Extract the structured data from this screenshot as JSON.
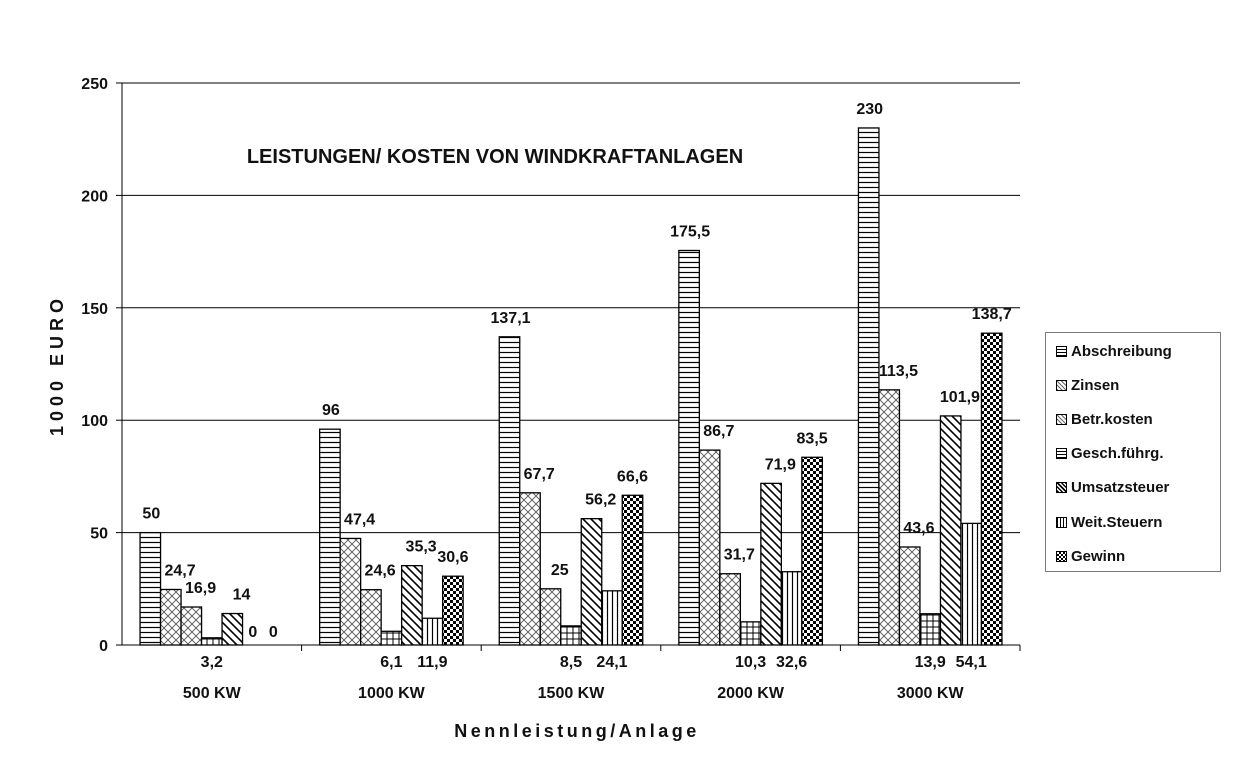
{
  "chart_data": {
    "type": "bar",
    "title": "LEISTUNGEN/ KOSTEN VON WINDKRAFTANLAGEN",
    "xlabel": "Nennleistung/Anlage",
    "ylabel": "1000 EURO",
    "ylim": [
      0,
      250
    ],
    "yticks": [
      "0",
      "50",
      "100",
      "150",
      "200",
      "250"
    ],
    "grid": true,
    "legend_position": "right",
    "categories": [
      "500 KW",
      "1000 KW",
      "1500 KW",
      "2000 KW",
      "3000 KW"
    ],
    "series": [
      {
        "name": "Abschreibung",
        "pattern": "hlines",
        "values": [
          50,
          96,
          137.1,
          175.5,
          230
        ],
        "labels": [
          "50",
          "96",
          "137,1",
          "175,5",
          "230"
        ]
      },
      {
        "name": "Zinsen",
        "pattern": "crosshatch",
        "values": [
          24.7,
          47.4,
          67.7,
          86.7,
          113.5
        ],
        "labels": [
          "24,7",
          "47,4",
          "67,7",
          "86,7",
          "113,5"
        ]
      },
      {
        "name": "Betr.kosten",
        "pattern": "crosshatch",
        "values": [
          16.9,
          24.6,
          25,
          31.7,
          43.6
        ],
        "labels": [
          "16,9",
          "24,6",
          "25",
          "31,7",
          "43,6"
        ]
      },
      {
        "name": "Gesch.führg.",
        "pattern": "grid",
        "values": [
          3.2,
          6.1,
          8.5,
          10.3,
          13.9
        ],
        "labels": [
          "3,2",
          "6,1",
          "8,5",
          "10,3",
          "13,9"
        ]
      },
      {
        "name": "Umsatzsteuer",
        "pattern": "diag",
        "values": [
          14,
          35.3,
          56.2,
          71.9,
          101.9
        ],
        "labels": [
          "14",
          "35,3",
          "56,2",
          "71,9",
          "101,9"
        ]
      },
      {
        "name": "Weit.Steuern",
        "pattern": "vlines",
        "values": [
          0,
          11.9,
          24.1,
          32.6,
          54.1
        ],
        "labels": [
          "0",
          "11,9",
          "24,1",
          "32,6",
          "54,1"
        ]
      },
      {
        "name": "Gewinn",
        "pattern": "checker",
        "values": [
          0,
          30.6,
          66.6,
          83.5,
          138.7
        ],
        "labels": [
          "0",
          "30,6",
          "66,6",
          "83,5",
          "138,7"
        ]
      }
    ]
  },
  "colors": {
    "fill": "#ffffff",
    "stroke": "#000000",
    "grid": "#000000",
    "text": "#111111"
  }
}
